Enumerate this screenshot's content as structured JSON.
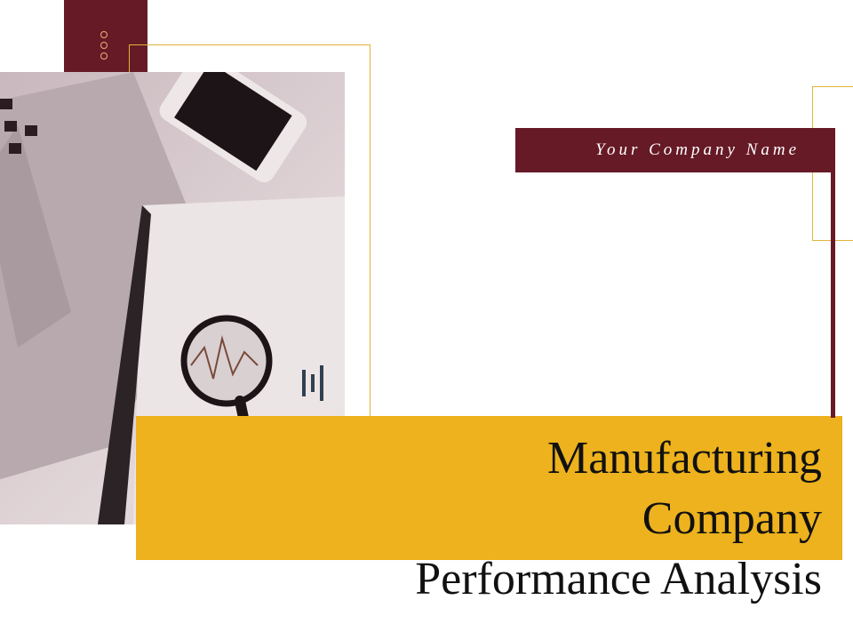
{
  "slide": {
    "company_name": "Your Company Name",
    "title_lines": [
      "Manufacturing",
      "Company",
      "Performance Analysis"
    ],
    "colors": {
      "maroon": "#661a26",
      "gold": "#edb21d",
      "frame": "#e0b43a"
    },
    "image": "desk-with-laptop-phone-magnifier-photo"
  }
}
